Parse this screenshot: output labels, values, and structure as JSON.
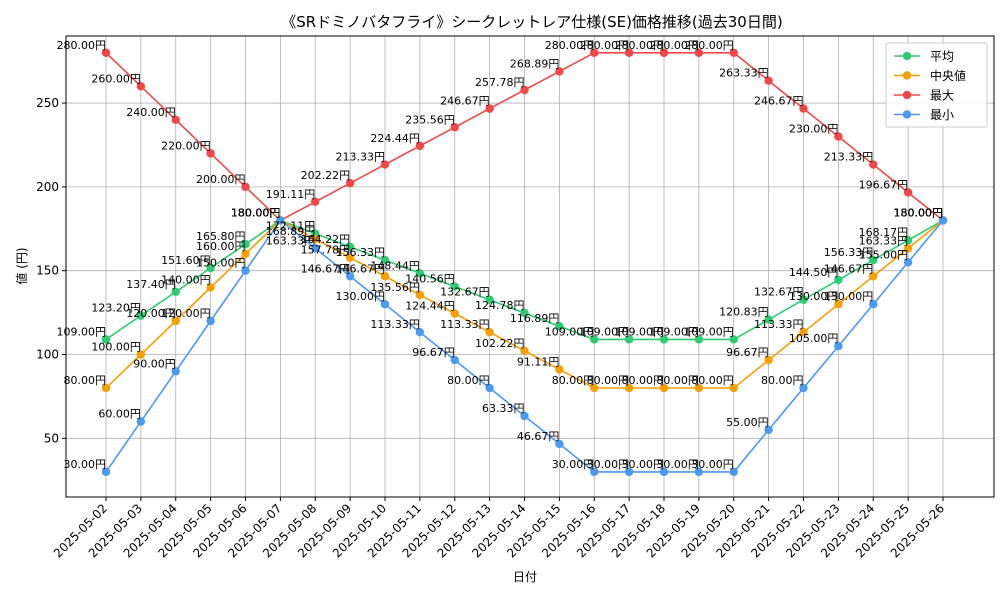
{
  "chart_data": {
    "type": "line",
    "title": "《SRドミノバタフライ》シークレットレア仕様(SE)価格推移(過去30日間)",
    "xlabel": "日付",
    "ylabel": "値 (円)",
    "ylim": [
      15,
      290
    ],
    "yticks": [
      50,
      100,
      150,
      200,
      250
    ],
    "grid": true,
    "legend_position": "top-right",
    "label_suffix": "円",
    "categories": [
      "2025-05-02",
      "2025-05-03",
      "2025-05-04",
      "2025-05-05",
      "2025-05-06",
      "2025-05-07",
      "2025-05-08",
      "2025-05-09",
      "2025-05-10",
      "2025-05-11",
      "2025-05-12",
      "2025-05-13",
      "2025-05-14",
      "2025-05-15",
      "2025-05-16",
      "2025-05-17",
      "2025-05-18",
      "2025-05-19",
      "2025-05-20",
      "2025-05-21",
      "2025-05-22",
      "2025-05-23",
      "2025-05-24",
      "2025-05-25",
      "2025-05-26"
    ],
    "series": [
      {
        "name": "平均",
        "color": "#2ecc71",
        "values": [
          109.0,
          123.2,
          137.4,
          151.6,
          165.8,
          180.0,
          172.11,
          164.22,
          156.33,
          148.44,
          140.56,
          132.67,
          124.78,
          116.89,
          109.0,
          109.0,
          109.0,
          109.0,
          109.0,
          120.83,
          132.67,
          144.5,
          156.33,
          168.17,
          180.0
        ]
      },
      {
        "name": "中央値",
        "color": "#f5a000",
        "values": [
          80.0,
          100.0,
          120.0,
          140.0,
          160.0,
          180.0,
          168.89,
          157.78,
          146.67,
          135.56,
          124.44,
          113.33,
          102.22,
          91.11,
          80.0,
          80.0,
          80.0,
          80.0,
          80.0,
          96.67,
          113.33,
          130.0,
          146.67,
          163.33,
          180.0
        ]
      },
      {
        "name": "最大",
        "color": "#f04848",
        "values": [
          280.0,
          260.0,
          240.0,
          220.0,
          200.0,
          180.0,
          191.11,
          202.22,
          213.33,
          224.44,
          235.56,
          246.67,
          257.78,
          268.89,
          280.0,
          280.0,
          280.0,
          280.0,
          280.0,
          263.33,
          246.67,
          230.0,
          213.33,
          196.67,
          180.0
        ]
      },
      {
        "name": "最小",
        "color": "#4a9af0",
        "values": [
          30.0,
          60.0,
          90.0,
          120.0,
          150.0,
          180.0,
          163.33,
          146.67,
          130.0,
          113.33,
          96.67,
          80.0,
          63.33,
          46.67,
          30.0,
          30.0,
          30.0,
          30.0,
          30.0,
          55.0,
          80.0,
          105.0,
          130.0,
          155.0,
          180.0
        ]
      }
    ]
  }
}
